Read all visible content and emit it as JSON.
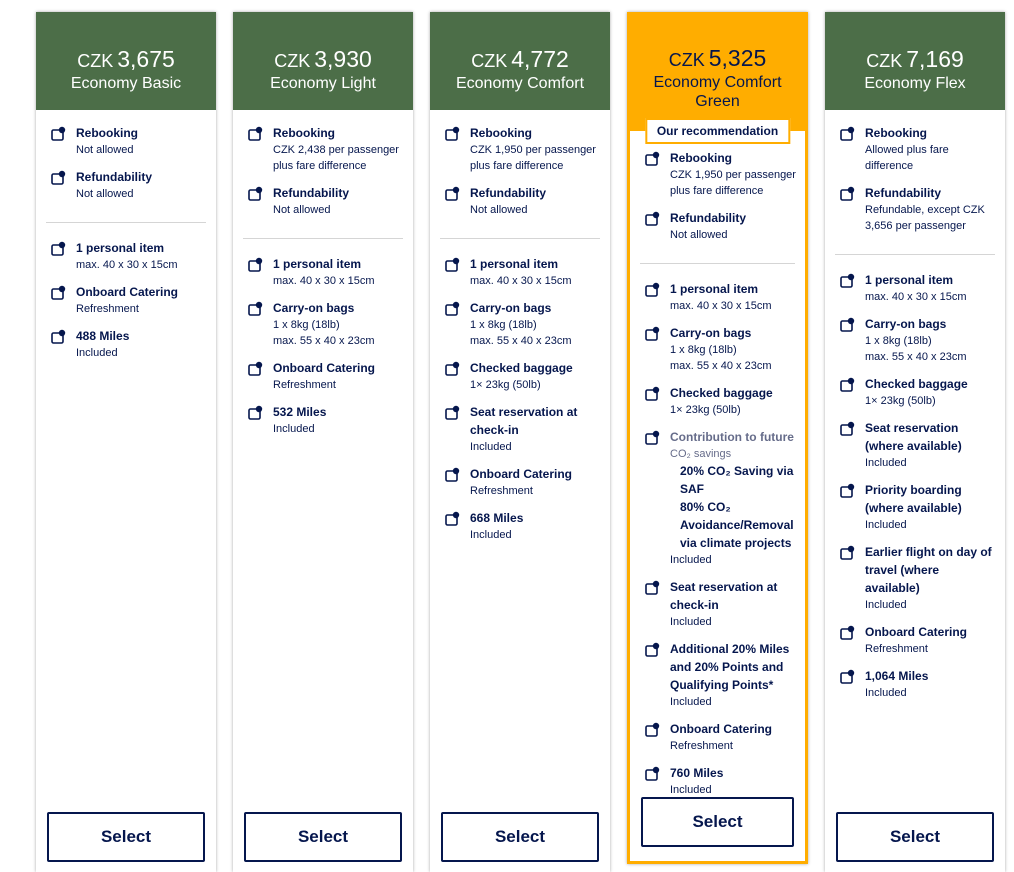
{
  "cards": [
    {
      "currency": "CZK",
      "price": "3,675",
      "name": "Economy Basic",
      "groups": [
        [
          {
            "title": "Rebooking",
            "detail": [
              "Not allowed"
            ]
          },
          {
            "title": "Refundability",
            "detail": [
              "Not allowed"
            ]
          }
        ],
        [
          {
            "title": "1 personal item",
            "detail": [
              "max. 40 x 30 x 15cm"
            ]
          },
          {
            "title": "Onboard Catering",
            "detail": [
              "Refreshment"
            ]
          },
          {
            "title": "488 Miles",
            "detail": [
              "Included"
            ]
          }
        ]
      ],
      "button": "Select"
    },
    {
      "currency": "CZK",
      "price": "3,930",
      "name": "Economy Light",
      "groups": [
        [
          {
            "title": "Rebooking",
            "detail": [
              "CZK 2,438 per passenger plus fare difference"
            ]
          },
          {
            "title": "Refundability",
            "detail": [
              "Not allowed"
            ]
          }
        ],
        [
          {
            "title": "1 personal item",
            "detail": [
              "max. 40 x 30 x 15cm"
            ]
          },
          {
            "title": "Carry-on bags",
            "detail": [
              "1 x 8kg (18lb)",
              "max. 55 x 40 x 23cm"
            ]
          },
          {
            "title": "Onboard Catering",
            "detail": [
              "Refreshment"
            ]
          },
          {
            "title": "532 Miles",
            "detail": [
              "Included"
            ]
          }
        ]
      ],
      "button": "Select"
    },
    {
      "currency": "CZK",
      "price": "4,772",
      "name": "Economy Comfort",
      "groups": [
        [
          {
            "title": "Rebooking",
            "detail": [
              "CZK 1,950 per passenger plus fare difference"
            ]
          },
          {
            "title": "Refundability",
            "detail": [
              "Not allowed"
            ]
          }
        ],
        [
          {
            "title": "1 personal item",
            "detail": [
              "max. 40 x 30 x 15cm"
            ]
          },
          {
            "title": "Carry-on bags",
            "detail": [
              "1 x 8kg (18lb)",
              "max. 55 x 40 x 23cm"
            ]
          },
          {
            "title": "Checked baggage",
            "detail": [
              "1× 23kg (50lb)"
            ]
          },
          {
            "title": "Seat reservation at check-in",
            "detail": [
              "Included"
            ]
          },
          {
            "title": "Onboard Catering",
            "detail": [
              "Refreshment"
            ]
          },
          {
            "title": "668 Miles",
            "detail": [
              "Included"
            ]
          }
        ]
      ],
      "button": "Select"
    },
    {
      "currency": "CZK",
      "price": "5,325",
      "name": "Economy Comfort Green",
      "badge": "Our recommendation",
      "groups": [
        [
          {
            "title": "Rebooking",
            "detail": [
              "CZK 1,950 per passenger plus fare difference"
            ]
          },
          {
            "title": "Refundability",
            "detail": [
              "Not allowed"
            ]
          }
        ],
        [
          {
            "title": "1 personal item",
            "detail": [
              "max. 40 x 30 x 15cm"
            ]
          },
          {
            "title": "Carry-on bags",
            "detail": [
              "1 x 8kg (18lb)",
              "max. 55 x 40 x 23cm"
            ]
          },
          {
            "title": "Checked baggage",
            "detail": [
              "1× 23kg (50lb)"
            ]
          },
          {
            "title": "Contribution to future",
            "subtitle": "CO₂ savings",
            "items": [
              "20% CO₂ Saving via SAF",
              "80% CO₂ Avoidance/Removal via climate projects"
            ],
            "detail": [
              "Included"
            ]
          },
          {
            "title": "Seat reservation at check-in",
            "detail": [
              "Included"
            ]
          },
          {
            "title": "Additional 20% Miles and 20% Points and Qualifying Points*",
            "detail": [
              "Included"
            ]
          },
          {
            "title": "Onboard Catering",
            "detail": [
              "Refreshment"
            ]
          },
          {
            "title": "760 Miles",
            "detail": [
              "Included"
            ]
          }
        ]
      ],
      "button": "Select"
    },
    {
      "currency": "CZK",
      "price": "7,169",
      "name": "Economy Flex",
      "groups": [
        [
          {
            "title": "Rebooking",
            "detail": [
              "Allowed plus fare difference"
            ]
          },
          {
            "title": "Refundability",
            "detail": [
              "Refundable, except CZK 3,656 per passenger"
            ]
          }
        ],
        [
          {
            "title": "1 personal item",
            "detail": [
              "max. 40 x 30 x 15cm"
            ]
          },
          {
            "title": "Carry-on bags",
            "detail": [
              "1 x 8kg (18lb)",
              "max. 55 x 40 x 23cm"
            ]
          },
          {
            "title": "Checked baggage",
            "detail": [
              "1× 23kg (50lb)"
            ]
          },
          {
            "title": "Seat reservation (where available)",
            "detail": [
              "Included"
            ]
          },
          {
            "title": "Priority boarding (where available)",
            "detail": [
              "Included"
            ]
          },
          {
            "title": "Earlier flight on day of travel (where available)",
            "detail": [
              "Included"
            ]
          },
          {
            "title": "Onboard Catering",
            "detail": [
              "Refreshment"
            ]
          },
          {
            "title": "1,064 Miles",
            "detail": [
              "Included"
            ]
          }
        ]
      ],
      "button": "Select"
    }
  ]
}
